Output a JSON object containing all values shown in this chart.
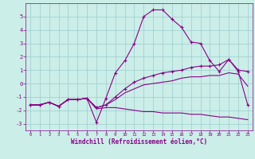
{
  "xlabel": "Windchill (Refroidissement éolien,°C)",
  "bg_color": "#cceee8",
  "line_color": "#880088",
  "grid_color": "#99cccc",
  "ylim": [
    -3.5,
    6.0
  ],
  "xlim": [
    -0.5,
    23.5
  ],
  "yticks": [
    -3,
    -2,
    -1,
    0,
    1,
    2,
    3,
    4,
    5
  ],
  "xticks": [
    0,
    1,
    2,
    3,
    4,
    5,
    6,
    7,
    8,
    9,
    10,
    11,
    12,
    13,
    14,
    15,
    16,
    17,
    18,
    19,
    20,
    21,
    22,
    23
  ],
  "series": [
    {
      "x": [
        0,
        1,
        2,
        3,
        4,
        5,
        6,
        7,
        8,
        9,
        10,
        11,
        12,
        13,
        14,
        15,
        16,
        17,
        18,
        19,
        20,
        21,
        22,
        23
      ],
      "y": [
        -1.6,
        -1.6,
        -1.4,
        -1.7,
        -1.2,
        -1.2,
        -1.1,
        -2.9,
        -1.1,
        0.8,
        1.7,
        3.0,
        5.0,
        5.5,
        5.5,
        4.8,
        4.2,
        3.1,
        3.0,
        1.7,
        0.9,
        1.8,
        0.9,
        -1.6
      ],
      "marker": true
    },
    {
      "x": [
        0,
        1,
        2,
        3,
        4,
        5,
        6,
        7,
        8,
        9,
        10,
        11,
        12,
        13,
        14,
        15,
        16,
        17,
        18,
        19,
        20,
        21,
        22,
        23
      ],
      "y": [
        -1.6,
        -1.6,
        -1.4,
        -1.7,
        -1.2,
        -1.2,
        -1.1,
        -1.8,
        -1.6,
        -1.0,
        -0.4,
        0.1,
        0.4,
        0.6,
        0.8,
        0.9,
        1.0,
        1.2,
        1.3,
        1.3,
        1.4,
        1.8,
        1.0,
        0.9
      ],
      "marker": true
    },
    {
      "x": [
        0,
        1,
        2,
        3,
        4,
        5,
        6,
        7,
        8,
        9,
        10,
        11,
        12,
        13,
        14,
        15,
        16,
        17,
        18,
        19,
        20,
        21,
        22,
        23
      ],
      "y": [
        -1.6,
        -1.6,
        -1.4,
        -1.7,
        -1.2,
        -1.2,
        -1.1,
        -1.8,
        -1.6,
        -1.2,
        -0.7,
        -0.4,
        -0.1,
        0.0,
        0.1,
        0.2,
        0.4,
        0.5,
        0.5,
        0.6,
        0.6,
        0.8,
        0.7,
        -0.2
      ],
      "marker": false
    },
    {
      "x": [
        0,
        1,
        2,
        3,
        4,
        5,
        6,
        7,
        8,
        9,
        10,
        11,
        12,
        13,
        14,
        15,
        16,
        17,
        18,
        19,
        20,
        21,
        22,
        23
      ],
      "y": [
        -1.6,
        -1.6,
        -1.4,
        -1.7,
        -1.2,
        -1.2,
        -1.1,
        -1.9,
        -1.8,
        -1.8,
        -1.9,
        -2.0,
        -2.1,
        -2.1,
        -2.2,
        -2.2,
        -2.2,
        -2.3,
        -2.3,
        -2.4,
        -2.5,
        -2.5,
        -2.6,
        -2.7
      ],
      "marker": false
    }
  ]
}
